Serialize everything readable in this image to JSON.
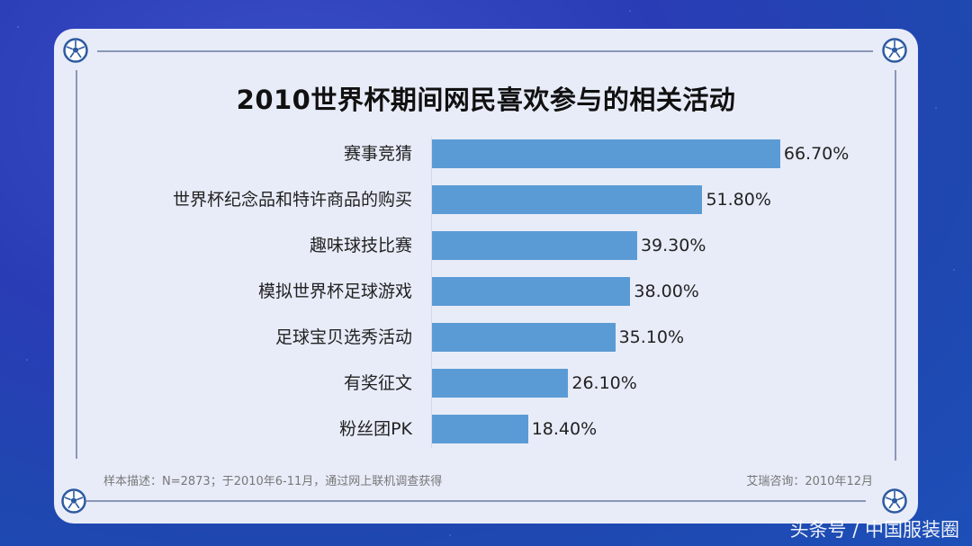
{
  "chart_data": {
    "type": "bar",
    "orientation": "horizontal",
    "title": "2010世界杯期间网民喜欢参与的相关活动",
    "categories": [
      "赛事竞猜",
      "世界杯纪念品和特许商品的购买",
      "趣味球技比赛",
      "模拟世界杯足球游戏",
      "足球宝贝选秀活动",
      "有奖征文",
      "粉丝团PK"
    ],
    "values": [
      66.7,
      51.8,
      39.3,
      38.0,
      35.1,
      26.1,
      18.4
    ],
    "value_labels": [
      "66.70%",
      "51.80%",
      "39.30%",
      "38.00%",
      "35.10%",
      "26.10%",
      "18.40%"
    ],
    "xlabel": "",
    "ylabel": "",
    "unit": "%",
    "grid": false,
    "legend": null,
    "bar_color": "#5b9bd5"
  },
  "footer": {
    "sample_note": "样本描述：N=2873；于2010年6-11月，通过网上联机调查获得",
    "source": "艾瑞咨询：2010年12月"
  },
  "watermark": "头条号 / 中国服装圈",
  "colors": {
    "background": "#2a3cb5",
    "card": "#e8ecf8",
    "bar": "#5b9bd5",
    "border_line": "#8b97b8"
  }
}
